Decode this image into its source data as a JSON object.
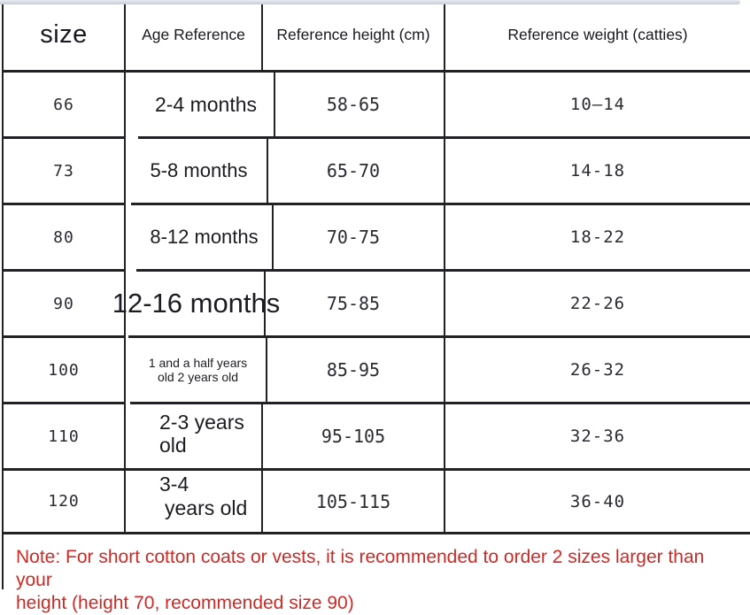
{
  "colors": {
    "border": "#222226",
    "note_red": "#cb2b27",
    "top_bar": "#c7ccd4",
    "background": "#ffffff"
  },
  "table": {
    "headers": [
      {
        "id": "size",
        "label": "size"
      },
      {
        "id": "age",
        "label": "Age Reference"
      },
      {
        "id": "height",
        "label": "Reference height (cm)"
      },
      {
        "id": "weight",
        "label": "Reference weight (catties)"
      }
    ],
    "rows": [
      {
        "size": "66",
        "age": "2-4 months",
        "height": "58-65",
        "weight": "10—14"
      },
      {
        "size": "73",
        "age": "5-8 months",
        "height": "65-70",
        "weight": "14-18"
      },
      {
        "size": "80",
        "age": "8-12 months",
        "height": "70-75",
        "weight": "18-22"
      },
      {
        "size": "90",
        "age": "12-16 months",
        "height": "75-85",
        "weight": "22-26"
      },
      {
        "size": "100",
        "age_line1": "1 and a half years",
        "age_line2": "old 2 years old",
        "height": "85-95",
        "weight": "26-32"
      },
      {
        "size": "110",
        "age_line1": "2-3 years",
        "age_line2": "old",
        "height": "95-105",
        "weight": "32-36"
      },
      {
        "size": "120",
        "age_line1": "3-4",
        "age_line2": "years old",
        "height": "105-115",
        "weight": "36-40"
      }
    ]
  },
  "note": {
    "line1": "Note: For short cotton coats or vests, it is recommended to order 2 sizes larger than your",
    "line2": "height (height 70, recommended size 90)"
  }
}
